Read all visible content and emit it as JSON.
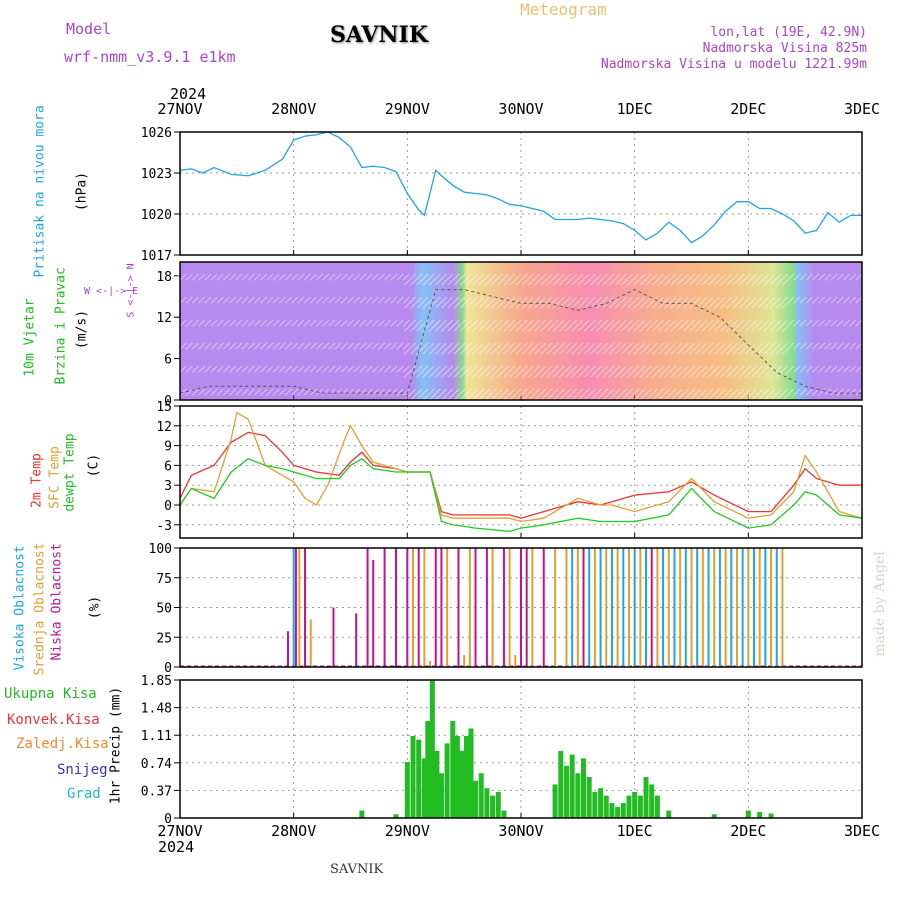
{
  "header": {
    "model_label": "Model",
    "model_name": "wrf-nmm_v3.9.1 e1km",
    "station": "SAVNIK",
    "title": "Meteogram",
    "lonlat": "lon,lat (19E, 42.9N)",
    "elevation": "Nadmorska Visina 825m",
    "model_elevation": "Nadmorska Visina u modelu 1221.99m",
    "year_top": "2024",
    "year_bottom": "2024",
    "footer_station": "SAVNIK",
    "watermark": "made by Angel"
  },
  "colors": {
    "pressure": "#1fa4e6",
    "temp2m": "#ee3333",
    "sfc_temp": "#e0a030",
    "dewpt": "#22cc22",
    "high_cloud": "#1fa4e6",
    "mid_cloud": "#e0a030",
    "low_cloud": "#c0148c",
    "total_precip": "#22bb22",
    "conv_precip": "#ee3333",
    "frozen_precip": "#ee8833",
    "snow": "#3333cc",
    "graupel": "#22bbbb",
    "title": "#e8c070",
    "purple_text": "#aa44cc"
  },
  "chart_data": [
    {
      "id": "pressure",
      "type": "line",
      "ylabel_main": "Pritisak na nivou mora",
      "ylabel_unit": "(hPa)",
      "x_categories": [
        "27NOV",
        "28NOV",
        "29NOV",
        "30NOV",
        "1DEC",
        "2DEC",
        "3DEC"
      ],
      "ylim": [
        1017,
        1026
      ],
      "yticks": [
        1017,
        1020,
        1023,
        1026
      ],
      "grid": true,
      "series": [
        {
          "key": "pressure",
          "x": [
            0,
            0.1,
            0.2,
            0.3,
            0.45,
            0.6,
            0.75,
            0.9,
            1.0,
            1.1,
            1.2,
            1.3,
            1.4,
            1.5,
            1.6,
            1.7,
            1.8,
            1.9,
            2.0,
            2.1,
            2.15,
            2.25,
            2.3,
            2.4,
            2.5,
            2.6,
            2.7,
            2.8,
            2.9,
            3.0,
            3.1,
            3.2,
            3.3,
            3.4,
            3.5,
            3.6,
            3.7,
            3.8,
            3.9,
            4.0,
            4.1,
            4.2,
            4.3,
            4.4,
            4.5,
            4.6,
            4.7,
            4.8,
            4.9,
            5.0,
            5.1,
            5.2,
            5.3,
            5.4,
            5.5,
            5.6,
            5.7,
            5.8,
            5.9,
            6.0
          ],
          "y": [
            1023.2,
            1023.3,
            1023.0,
            1023.4,
            1022.9,
            1022.8,
            1023.2,
            1024.0,
            1025.4,
            1025.7,
            1025.8,
            1026.0,
            1025.6,
            1024.9,
            1023.4,
            1023.5,
            1023.4,
            1023.1,
            1021.5,
            1020.3,
            1019.9,
            1023.2,
            1022.8,
            1022.1,
            1021.6,
            1021.5,
            1021.4,
            1021.1,
            1020.7,
            1020.6,
            1020.4,
            1020.2,
            1019.6,
            1019.6,
            1019.6,
            1019.7,
            1019.6,
            1019.5,
            1019.3,
            1018.8,
            1018.1,
            1018.6,
            1019.4,
            1018.8,
            1017.9,
            1018.4,
            1019.2,
            1020.2,
            1020.9,
            1020.9,
            1020.4,
            1020.4,
            1020.0,
            1019.5,
            1018.6,
            1018.8,
            1020.1,
            1019.4,
            1019.9,
            1019.9
          ]
        }
      ]
    },
    {
      "id": "wind",
      "type": "barbs",
      "ylabel_main": "10m Vjetar",
      "ylabel_sub": "Brzina i Pravac",
      "ylabel_unit": "(m/s)",
      "compass_label": "W <-|-> E",
      "compass_label_vertical": "S <-|-> N",
      "ylim": [
        0,
        20
      ],
      "yticks": [
        0,
        6,
        12,
        18
      ],
      "speed_series": {
        "x": [
          0,
          0.25,
          0.5,
          0.75,
          1.0,
          1.25,
          1.5,
          1.75,
          2.0,
          2.25,
          2.5,
          2.75,
          3.0,
          3.25,
          3.5,
          3.75,
          4.0,
          4.25,
          4.5,
          4.75,
          5.0,
          5.25,
          5.5,
          5.75,
          6.0
        ],
        "y": [
          1,
          2,
          2,
          2,
          2,
          1,
          1,
          1,
          1,
          16,
          16,
          15,
          14,
          14,
          13,
          14,
          16,
          14,
          14,
          12,
          8,
          4,
          2,
          1,
          1
        ]
      }
    },
    {
      "id": "temperature",
      "type": "line",
      "ylabel_lines": [
        "2m Temp",
        "SFC Temp",
        "dewpt Temp"
      ],
      "ylabel_unit": "(C)",
      "ylim": [
        -5,
        15
      ],
      "yticks": [
        -3,
        0,
        3,
        6,
        9,
        12,
        15
      ],
      "grid": true,
      "series": [
        {
          "key": "temp2m",
          "name": "2m Temp",
          "x": [
            0,
            0.1,
            0.3,
            0.45,
            0.6,
            0.75,
            0.9,
            1.0,
            1.2,
            1.4,
            1.5,
            1.6,
            1.7,
            1.9,
            2.0,
            2.2,
            2.3,
            2.4,
            2.6,
            2.9,
            3.0,
            3.2,
            3.5,
            3.7,
            3.8,
            4.0,
            4.3,
            4.5,
            4.7,
            5.0,
            5.2,
            5.4,
            5.5,
            5.6,
            5.8,
            6.0
          ],
          "y": [
            1,
            4.5,
            6,
            9.5,
            11,
            10.5,
            8,
            6,
            5,
            4.5,
            6.5,
            8,
            6,
            5.5,
            5,
            5,
            -1,
            -1.5,
            -1.5,
            -1.5,
            -2,
            -1,
            0.5,
            0,
            0.5,
            1.5,
            2,
            3.5,
            1.5,
            -1,
            -1,
            3,
            5.5,
            4,
            3,
            3
          ]
        },
        {
          "key": "sfc_temp",
          "name": "SFC Temp",
          "x": [
            0,
            0.1,
            0.3,
            0.45,
            0.5,
            0.6,
            0.75,
            0.9,
            1.0,
            1.1,
            1.2,
            1.3,
            1.45,
            1.5,
            1.6,
            1.7,
            1.9,
            2.0,
            2.2,
            2.3,
            2.4,
            2.6,
            2.9,
            3.0,
            3.2,
            3.5,
            3.7,
            3.8,
            4.0,
            4.3,
            4.5,
            4.7,
            5.0,
            5.2,
            5.4,
            5.5,
            5.6,
            5.8,
            6.0
          ],
          "y": [
            0,
            2.5,
            2,
            10,
            14,
            13,
            6,
            4.5,
            3.5,
            1,
            0,
            3,
            10,
            12,
            9,
            6.5,
            5.5,
            5,
            5,
            -1.5,
            -2,
            -2,
            -2,
            -2.5,
            -2,
            1,
            0,
            0,
            -1,
            0.5,
            4,
            0.5,
            -2,
            -1.5,
            2,
            7.5,
            5,
            -1,
            -2
          ]
        },
        {
          "key": "dewpt",
          "name": "dewpt Temp",
          "x": [
            0,
            0.1,
            0.3,
            0.45,
            0.6,
            0.75,
            0.9,
            1.0,
            1.2,
            1.4,
            1.5,
            1.6,
            1.7,
            1.9,
            2.0,
            2.2,
            2.3,
            2.4,
            2.6,
            2.9,
            3.0,
            3.2,
            3.5,
            3.7,
            3.8,
            4.0,
            4.3,
            4.5,
            4.7,
            5.0,
            5.2,
            5.4,
            5.5,
            5.6,
            5.8,
            6.0
          ],
          "y": [
            0,
            2.5,
            1,
            5,
            7,
            6,
            5.5,
            5,
            4,
            4,
            6,
            7,
            5.5,
            5,
            5,
            5,
            -2.5,
            -3,
            -3.5,
            -4,
            -3.5,
            -3,
            -2,
            -2.5,
            -2.5,
            -2.5,
            -1.5,
            2.5,
            -1,
            -3.5,
            -3,
            0,
            2,
            1.5,
            -1.5,
            -2
          ]
        }
      ]
    },
    {
      "id": "cloud",
      "type": "bar",
      "ylabel_lines": [
        "Visoka Oblacnost",
        "Srednja Oblacnost",
        "Niska Oblacnost"
      ],
      "ylabel_unit": "(%)",
      "ylim": [
        0,
        100
      ],
      "yticks": [
        0,
        25,
        50,
        75,
        100
      ],
      "grid": true,
      "bars": [
        {
          "x": 1.0,
          "h": 100,
          "k": "high_cloud"
        },
        {
          "x": 1.02,
          "h": 100,
          "k": "low_cloud"
        },
        {
          "x": 1.05,
          "h": 100,
          "k": "mid_cloud"
        },
        {
          "x": 0.95,
          "h": 30,
          "k": "low_cloud"
        },
        {
          "x": 1.1,
          "h": 100,
          "k": "low_cloud"
        },
        {
          "x": 1.15,
          "h": 40,
          "k": "mid_cloud"
        },
        {
          "x": 1.35,
          "h": 50,
          "k": "low_cloud"
        },
        {
          "x": 1.55,
          "h": 45,
          "k": "low_cloud"
        },
        {
          "x": 1.65,
          "h": 100,
          "k": "low_cloud"
        },
        {
          "x": 1.7,
          "h": 90,
          "k": "low_cloud"
        },
        {
          "x": 1.8,
          "h": 100,
          "k": "low_cloud"
        },
        {
          "x": 1.9,
          "h": 100,
          "k": "low_cloud"
        },
        {
          "x": 2.0,
          "h": 100,
          "k": "low_cloud"
        },
        {
          "x": 2.05,
          "h": 100,
          "k": "mid_cloud"
        },
        {
          "x": 2.1,
          "h": 100,
          "k": "low_cloud"
        },
        {
          "x": 2.15,
          "h": 100,
          "k": "mid_cloud"
        },
        {
          "x": 2.25,
          "h": 100,
          "k": "low_cloud"
        },
        {
          "x": 2.3,
          "h": 100,
          "k": "low_cloud"
        },
        {
          "x": 2.35,
          "h": 100,
          "k": "mid_cloud"
        },
        {
          "x": 2.45,
          "h": 100,
          "k": "low_cloud"
        },
        {
          "x": 2.55,
          "h": 100,
          "k": "mid_cloud"
        },
        {
          "x": 2.6,
          "h": 100,
          "k": "low_cloud"
        },
        {
          "x": 2.7,
          "h": 100,
          "k": "low_cloud"
        },
        {
          "x": 2.75,
          "h": 100,
          "k": "mid_cloud"
        },
        {
          "x": 2.85,
          "h": 100,
          "k": "low_cloud"
        },
        {
          "x": 2.9,
          "h": 100,
          "k": "mid_cloud"
        },
        {
          "x": 3.0,
          "h": 100,
          "k": "low_cloud"
        },
        {
          "x": 3.05,
          "h": 100,
          "k": "low_cloud"
        },
        {
          "x": 3.1,
          "h": 100,
          "k": "mid_cloud"
        },
        {
          "x": 3.2,
          "h": 100,
          "k": "low_cloud"
        },
        {
          "x": 3.3,
          "h": 100,
          "k": "mid_cloud"
        },
        {
          "x": 3.4,
          "h": 100,
          "k": "mid_cloud"
        },
        {
          "x": 3.45,
          "h": 100,
          "k": "high_cloud"
        },
        {
          "x": 3.5,
          "h": 100,
          "k": "mid_cloud"
        },
        {
          "x": 3.55,
          "h": 100,
          "k": "low_cloud"
        },
        {
          "x": 3.6,
          "h": 100,
          "k": "high_cloud"
        },
        {
          "x": 3.65,
          "h": 100,
          "k": "mid_cloud"
        },
        {
          "x": 3.7,
          "h": 100,
          "k": "high_cloud"
        },
        {
          "x": 3.75,
          "h": 100,
          "k": "mid_cloud"
        },
        {
          "x": 3.8,
          "h": 100,
          "k": "high_cloud"
        },
        {
          "x": 3.85,
          "h": 100,
          "k": "mid_cloud"
        },
        {
          "x": 3.9,
          "h": 100,
          "k": "high_cloud"
        },
        {
          "x": 3.95,
          "h": 100,
          "k": "mid_cloud"
        },
        {
          "x": 4.0,
          "h": 100,
          "k": "high_cloud"
        },
        {
          "x": 4.05,
          "h": 100,
          "k": "mid_cloud"
        },
        {
          "x": 4.1,
          "h": 100,
          "k": "high_cloud"
        },
        {
          "x": 4.15,
          "h": 100,
          "k": "low_cloud"
        },
        {
          "x": 4.2,
          "h": 100,
          "k": "mid_cloud"
        },
        {
          "x": 4.25,
          "h": 100,
          "k": "high_cloud"
        },
        {
          "x": 4.3,
          "h": 100,
          "k": "mid_cloud"
        },
        {
          "x": 4.35,
          "h": 100,
          "k": "high_cloud"
        },
        {
          "x": 4.4,
          "h": 100,
          "k": "mid_cloud"
        },
        {
          "x": 4.45,
          "h": 100,
          "k": "high_cloud"
        },
        {
          "x": 4.5,
          "h": 100,
          "k": "mid_cloud"
        },
        {
          "x": 4.55,
          "h": 100,
          "k": "high_cloud"
        },
        {
          "x": 4.6,
          "h": 100,
          "k": "mid_cloud"
        },
        {
          "x": 4.65,
          "h": 100,
          "k": "high_cloud"
        },
        {
          "x": 4.7,
          "h": 100,
          "k": "mid_cloud"
        },
        {
          "x": 4.75,
          "h": 100,
          "k": "high_cloud"
        },
        {
          "x": 4.8,
          "h": 100,
          "k": "mid_cloud"
        },
        {
          "x": 4.85,
          "h": 100,
          "k": "high_cloud"
        },
        {
          "x": 4.9,
          "h": 100,
          "k": "mid_cloud"
        },
        {
          "x": 4.95,
          "h": 100,
          "k": "high_cloud"
        },
        {
          "x": 5.0,
          "h": 100,
          "k": "mid_cloud"
        },
        {
          "x": 5.05,
          "h": 100,
          "k": "high_cloud"
        },
        {
          "x": 5.1,
          "h": 100,
          "k": "mid_cloud"
        },
        {
          "x": 5.15,
          "h": 100,
          "k": "high_cloud"
        },
        {
          "x": 5.2,
          "h": 100,
          "k": "mid_cloud"
        },
        {
          "x": 5.25,
          "h": 100,
          "k": "high_cloud"
        },
        {
          "x": 5.3,
          "h": 100,
          "k": "mid_cloud"
        },
        {
          "x": 2.5,
          "h": 10,
          "k": "mid_cloud"
        },
        {
          "x": 2.95,
          "h": 10,
          "k": "mid_cloud"
        },
        {
          "x": 2.2,
          "h": 5,
          "k": "mid_cloud"
        }
      ]
    },
    {
      "id": "precip",
      "type": "bar",
      "legend": [
        "Ukupna Kisa",
        "Konvek.Kisa",
        "Zaledj.Kisa",
        "Snijeg",
        "Grad"
      ],
      "ylabel_unit": "1hr Precip (mm)",
      "ylim": [
        0,
        1.85
      ],
      "yticks": [
        0,
        0.37,
        0.74,
        1.11,
        1.48,
        1.85
      ],
      "grid": true,
      "bars": [
        {
          "x": 2.0,
          "h": 0.75
        },
        {
          "x": 2.05,
          "h": 1.1
        },
        {
          "x": 2.1,
          "h": 1.05
        },
        {
          "x": 2.15,
          "h": 0.8
        },
        {
          "x": 2.18,
          "h": 1.3
        },
        {
          "x": 2.22,
          "h": 1.85
        },
        {
          "x": 2.26,
          "h": 0.9
        },
        {
          "x": 2.3,
          "h": 0.6
        },
        {
          "x": 2.35,
          "h": 1.0
        },
        {
          "x": 2.4,
          "h": 1.3
        },
        {
          "x": 2.44,
          "h": 1.1
        },
        {
          "x": 2.48,
          "h": 0.9
        },
        {
          "x": 2.52,
          "h": 1.1
        },
        {
          "x": 2.56,
          "h": 1.2
        },
        {
          "x": 2.6,
          "h": 0.5
        },
        {
          "x": 2.65,
          "h": 0.6
        },
        {
          "x": 2.7,
          "h": 0.4
        },
        {
          "x": 2.75,
          "h": 0.3
        },
        {
          "x": 2.8,
          "h": 0.35
        },
        {
          "x": 2.85,
          "h": 0.1
        },
        {
          "x": 1.6,
          "h": 0.1
        },
        {
          "x": 1.9,
          "h": 0.05
        },
        {
          "x": 3.3,
          "h": 0.45
        },
        {
          "x": 3.35,
          "h": 0.9
        },
        {
          "x": 3.4,
          "h": 0.7
        },
        {
          "x": 3.45,
          "h": 0.85
        },
        {
          "x": 3.5,
          "h": 0.6
        },
        {
          "x": 3.55,
          "h": 0.8
        },
        {
          "x": 3.6,
          "h": 0.55
        },
        {
          "x": 3.65,
          "h": 0.35
        },
        {
          "x": 3.7,
          "h": 0.4
        },
        {
          "x": 3.75,
          "h": 0.3
        },
        {
          "x": 3.8,
          "h": 0.2
        },
        {
          "x": 3.85,
          "h": 0.15
        },
        {
          "x": 3.9,
          "h": 0.2
        },
        {
          "x": 3.95,
          "h": 0.3
        },
        {
          "x": 4.0,
          "h": 0.35
        },
        {
          "x": 4.05,
          "h": 0.3
        },
        {
          "x": 4.1,
          "h": 0.55
        },
        {
          "x": 4.15,
          "h": 0.45
        },
        {
          "x": 4.2,
          "h": 0.3
        },
        {
          "x": 4.3,
          "h": 0.1
        },
        {
          "x": 4.7,
          "h": 0.05
        },
        {
          "x": 5.0,
          "h": 0.1
        },
        {
          "x": 5.1,
          "h": 0.08
        },
        {
          "x": 5.2,
          "h": 0.06
        }
      ]
    }
  ]
}
